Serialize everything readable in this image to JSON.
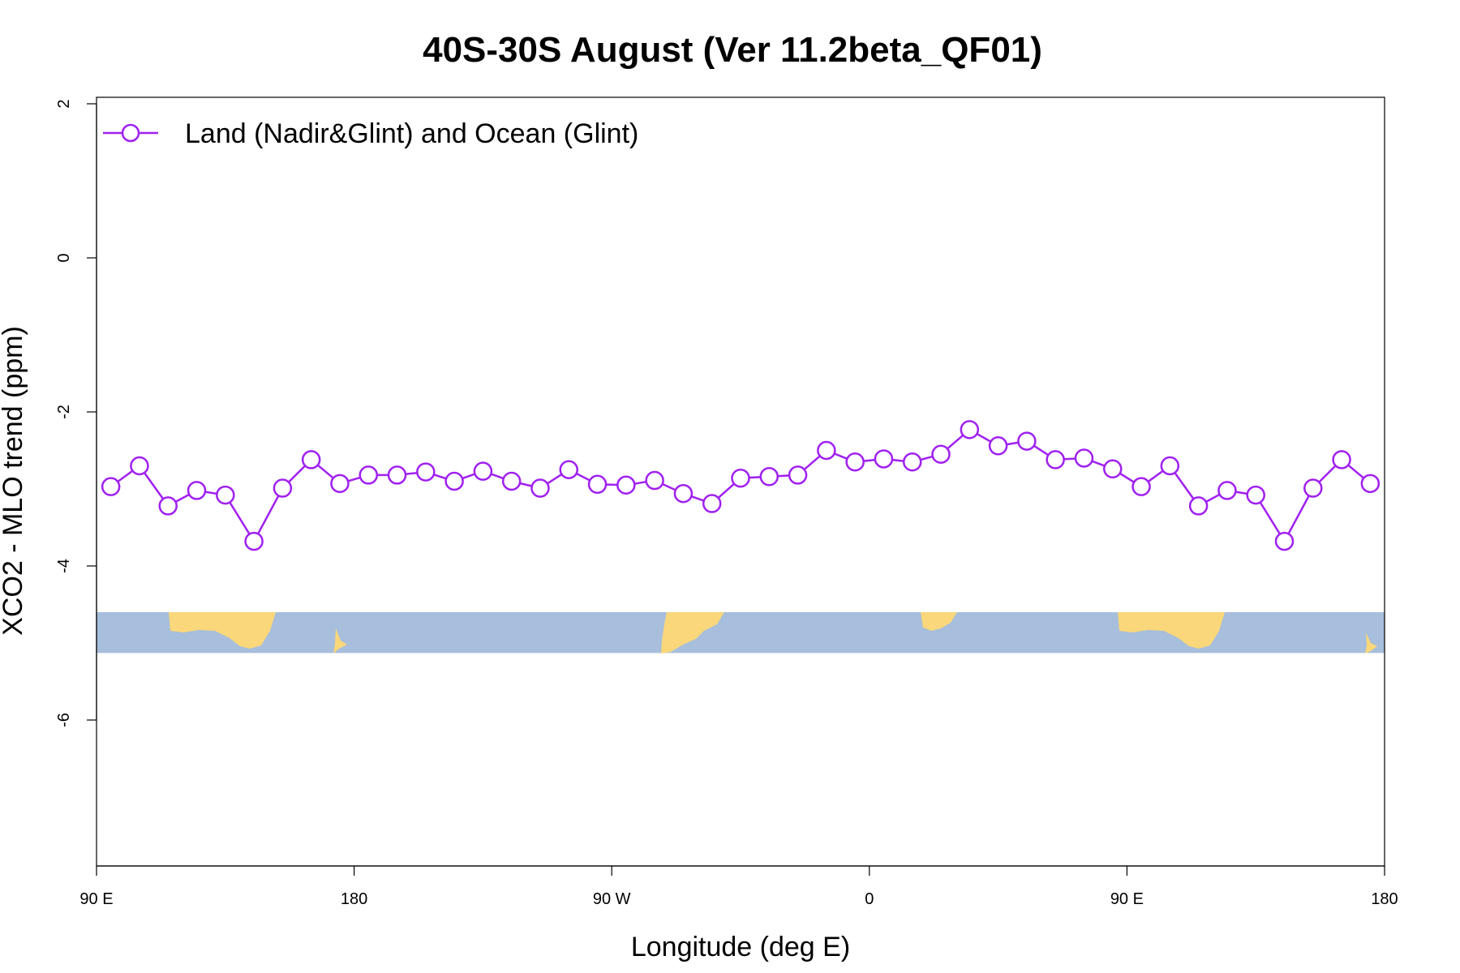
{
  "chart_data": {
    "type": "line",
    "title": "40S-30S August (Ver 11.2beta_QF01)",
    "xlabel": "Longitude (deg E)",
    "ylabel": "XCO2 - MLO trend (ppm)",
    "x_tick_labels": [
      "90 E",
      "180",
      "90 W",
      "0",
      "90 E",
      "180"
    ],
    "x_tick_positions": [
      90,
      180,
      270,
      360,
      450,
      540
    ],
    "xlim": [
      90,
      540
    ],
    "y_ticks": [
      2,
      0,
      -2,
      -4,
      -6
    ],
    "y_tick_labels": [
      "2",
      "0",
      "-2",
      "-4",
      "-6"
    ],
    "ylim": [
      -7.9,
      2.05
    ],
    "grid": false,
    "legend_position": "top-left",
    "map_strip": {
      "ocean_color": "#a7bedc",
      "land_color": "#f9d77a",
      "y_range": [
        -5.13,
        -4.6
      ]
    },
    "series": [
      {
        "name": "Land (Nadir&Glint) and Ocean (Glint)",
        "color": "#a020f0",
        "marker": "open-circle",
        "x": [
          95,
          105,
          115,
          125,
          135,
          145,
          155,
          165,
          175,
          185,
          195,
          205,
          215,
          225,
          235,
          245,
          255,
          265,
          275,
          285,
          295,
          305,
          315,
          325,
          335,
          345,
          355,
          365,
          375,
          385,
          395,
          405,
          415,
          425,
          435,
          445,
          455,
          465,
          475,
          485,
          495,
          505,
          515,
          525,
          535
        ],
        "values": [
          -2.97,
          -2.7,
          -3.22,
          -3.02,
          -3.08,
          -3.68,
          -2.99,
          -2.62,
          -2.93,
          -2.82,
          -2.82,
          -2.78,
          -2.9,
          -2.77,
          -2.9,
          -2.99,
          -2.75,
          -2.94,
          -2.95,
          -2.89,
          -3.06,
          -3.19,
          -2.86,
          -2.84,
          -2.82,
          -2.5,
          -2.65,
          -2.61,
          -2.65,
          -2.55,
          -2.23,
          -2.44,
          -2.38,
          -2.62,
          -2.6,
          -2.74,
          -2.97,
          -2.7,
          -3.22,
          -3.02,
          -3.08,
          -3.68,
          -2.99,
          -2.62,
          -2.93
        ]
      }
    ]
  }
}
